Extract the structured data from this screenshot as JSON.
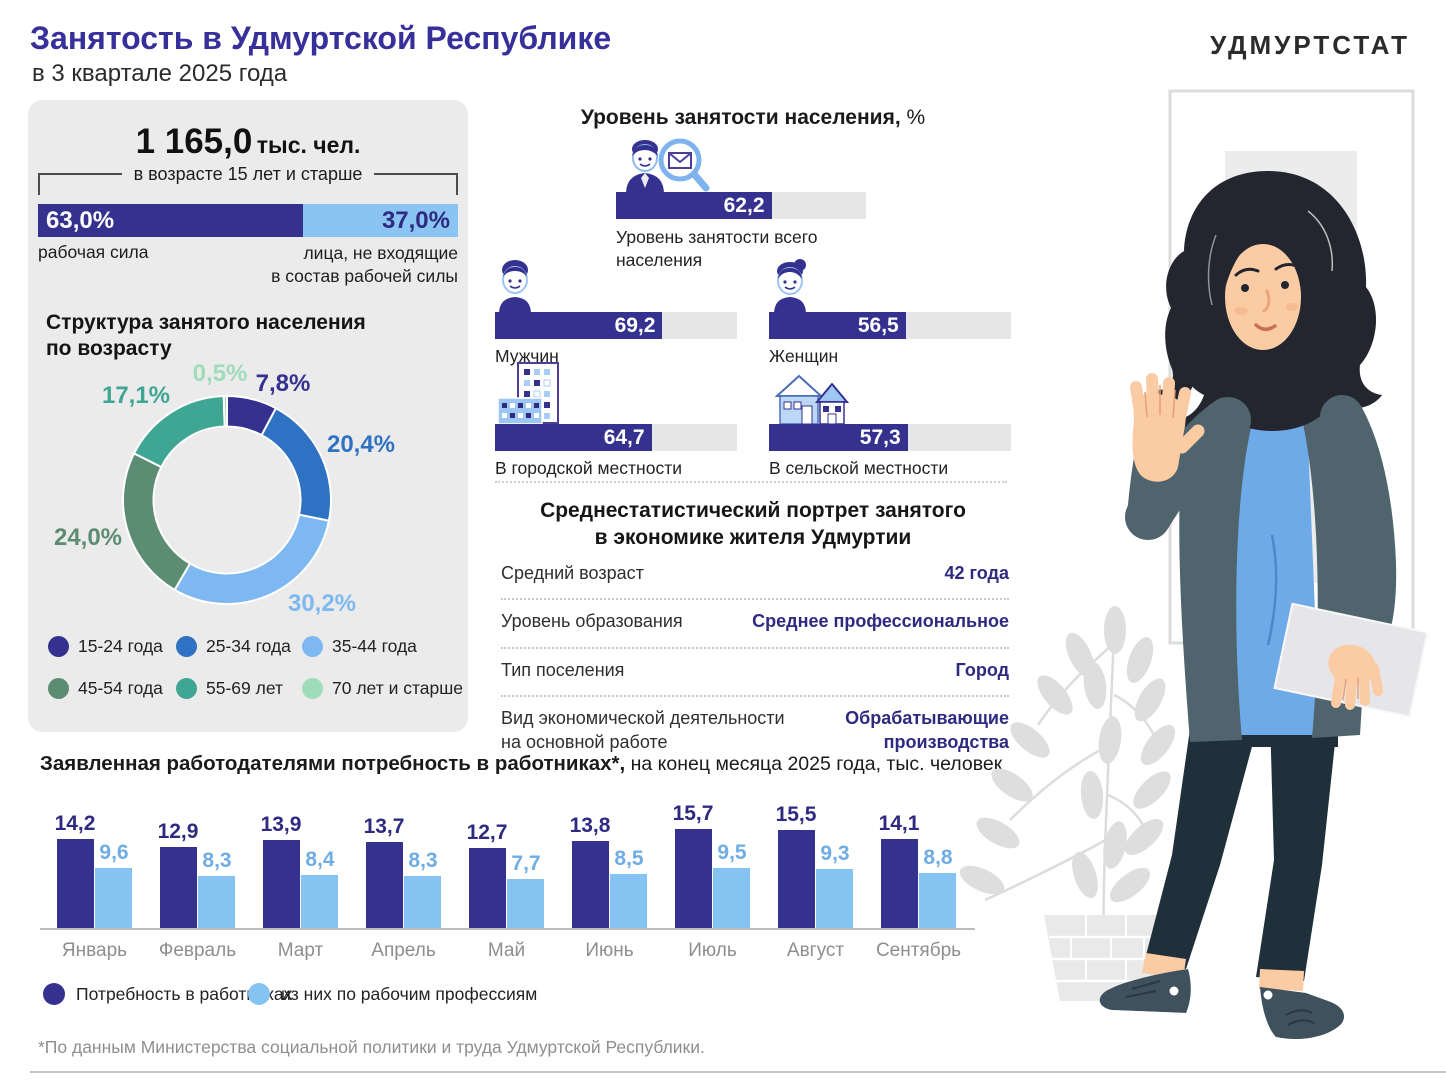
{
  "header": {
    "title": "Занятость в Удмуртской Республике",
    "subtitle": "в 3 квартале 2025 года",
    "logo": "УДМУРТСТАТ"
  },
  "population": {
    "total_value": "1 165,0",
    "total_unit": "тыс. чел.",
    "age_note": "в возрасте 15 лет и старше",
    "labor_force_value": 63.0,
    "labor_force_display": "63,0%",
    "labor_force_label": "рабочая сила",
    "non_labor_value": 37.0,
    "non_labor_display": "37,0%",
    "non_labor_label_line1": "лица, не входящие",
    "non_labor_label_line2": "в состав рабочей силы",
    "labor_color": "#35318F",
    "non_labor_color": "#8AC4F2"
  },
  "age_structure_title_line1": "Структура занятого населения",
  "age_structure_title_line2": "по возрасту",
  "employment_header_bold": "Уровень занятости населения,",
  "employment_header_unit": " %",
  "portrait": {
    "title_line1": "Среднестатистический портрет занятого",
    "title_line2": "в экономике жителя Удмуртии",
    "rows": [
      {
        "label": "Средний возраст",
        "value": "42 года"
      },
      {
        "label": "Уровень образования",
        "value": "Среднее профессиональное"
      },
      {
        "label": "Тип поселения",
        "value": "Город"
      },
      {
        "label_line1": "Вид экономической деятельности",
        "label_line2": "на основной работе",
        "value_line1": "Обрабатывающие",
        "value_line2": "производства"
      }
    ]
  },
  "vacancy_title_bold": "Заявленная работодателями потребность в работниках*,",
  "vacancy_title_rest": " на конец месяца 2025 года, тыс. человек",
  "vacancy_footnote": "*По данным Министерства социальной политики и труда Удмуртской Республики.",
  "chart_data": [
    {
      "id": "age_donut",
      "type": "pie",
      "title": "Структура занятого населения по возрасту",
      "segments": [
        {
          "label": "15-24 года",
          "value": 7.8,
          "display": "7,8%",
          "color": "#35318F"
        },
        {
          "label": "25-34 года",
          "value": 20.4,
          "display": "20,4%",
          "color": "#2F72C3"
        },
        {
          "label": "35-44 года",
          "value": 30.2,
          "display": "30,2%",
          "color": "#7DB9F0"
        },
        {
          "label": "45-54 года",
          "value": 24.0,
          "display": "24,0%",
          "color": "#5C8D72"
        },
        {
          "label": "55-69 лет",
          "value": 17.1,
          "display": "17,1%",
          "color": "#3FA694"
        },
        {
          "label": "70 лет и старше",
          "value": 0.5,
          "display": "0,5%",
          "color": "#9FDCBA"
        }
      ]
    },
    {
      "id": "employment_levels",
      "type": "bar",
      "title": "Уровень занятости населения, %",
      "axis_max": 100,
      "bar_color": "#35318F",
      "track_color": "#E7E6E6",
      "items": [
        {
          "key": "total",
          "label_line1": "Уровень занятости всего",
          "label_line2": "населения",
          "value": 62.2,
          "display": "62,2"
        },
        {
          "key": "men",
          "label_line1": "Мужчин",
          "value": 69.2,
          "display": "69,2"
        },
        {
          "key": "women",
          "label_line1": "Женщин",
          "value": 56.5,
          "display": "56,5"
        },
        {
          "key": "urban",
          "label_line1": "В городской местности",
          "value": 64.7,
          "display": "64,7"
        },
        {
          "key": "rural",
          "label_line1": "В сельской местности",
          "value": 57.3,
          "display": "57,3"
        }
      ]
    },
    {
      "id": "vacancies",
      "type": "bar",
      "title": "Заявленная работодателями потребность в работниках, на конец месяца 2025 года, тыс. человек",
      "categories": [
        "Январь",
        "Февраль",
        "Март",
        "Апрель",
        "Май",
        "Июнь",
        "Июль",
        "Август",
        "Сентябрь"
      ],
      "ylim": [
        0,
        16
      ],
      "value_labels": true,
      "series": [
        {
          "name": "Потребность в работниках",
          "color": "#35318F",
          "label_color": "#2D2A80",
          "values": [
            14.2,
            12.9,
            13.9,
            13.7,
            12.7,
            13.8,
            15.7,
            15.5,
            14.1
          ]
        },
        {
          "name": "из них по рабочим профессиям",
          "color": "#85C3F2",
          "label_color": "#6FADE4",
          "values": [
            9.6,
            8.3,
            8.4,
            8.3,
            7.7,
            8.5,
            9.5,
            9.3,
            8.8
          ]
        }
      ]
    }
  ]
}
